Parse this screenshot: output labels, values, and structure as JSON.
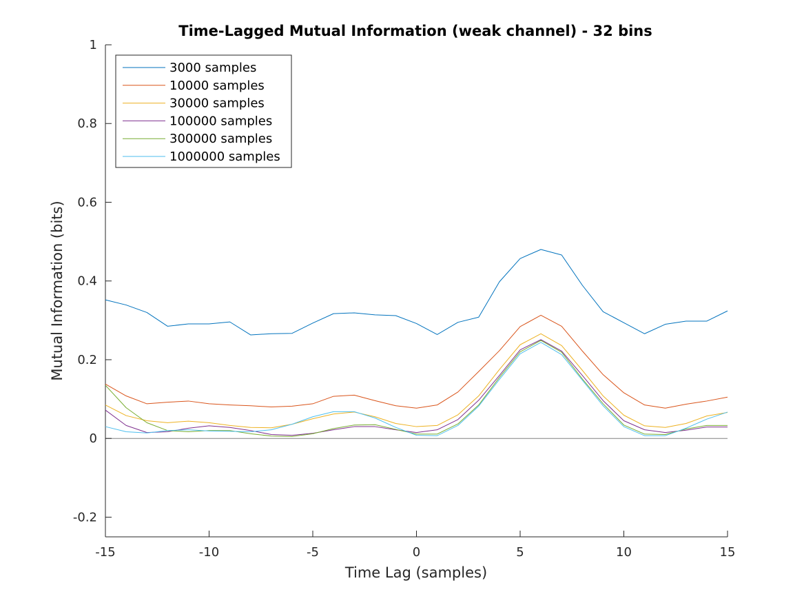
{
  "chart_data": {
    "type": "line",
    "title": "Time-Lagged Mutual Information (weak channel) - 32 bins",
    "xlabel": "Time Lag (samples)",
    "ylabel": "Mutual Information (bits)",
    "xlim": [
      -15,
      15
    ],
    "ylim": [
      -0.25,
      1
    ],
    "xticks": [
      -15,
      -10,
      -5,
      0,
      5,
      10,
      15
    ],
    "xtick_labels": [
      "-15",
      "-10",
      "-5",
      "0",
      "5",
      "10",
      "15"
    ],
    "yticks": [
      -0.2,
      0,
      0.2,
      0.4,
      0.6,
      0.8,
      1
    ],
    "ytick_labels": [
      "-0.2",
      "0",
      "0.2",
      "0.4",
      "0.6",
      "0.8",
      "1"
    ],
    "grid": false,
    "legend_position": "top-left",
    "reference_line_y": 0,
    "x": [
      -15,
      -14,
      -13,
      -12,
      -11,
      -10,
      -9,
      -8,
      -7,
      -6,
      -5,
      -4,
      -3,
      -2,
      -1,
      0,
      1,
      2,
      3,
      4,
      5,
      6,
      7,
      8,
      9,
      10,
      11,
      12,
      13,
      14,
      15
    ],
    "series": [
      {
        "name": "3000 samples",
        "color": "#0072BD",
        "values": [
          0.352,
          0.339,
          0.32,
          0.285,
          0.291,
          0.291,
          0.296,
          0.263,
          0.266,
          0.267,
          0.293,
          0.317,
          0.319,
          0.314,
          0.312,
          0.292,
          0.264,
          0.295,
          0.308,
          0.398,
          0.457,
          0.48,
          0.466,
          0.389,
          0.322,
          0.294,
          0.266,
          0.29,
          0.298,
          0.298,
          0.324
        ]
      },
      {
        "name": "10000 samples",
        "color": "#D95319",
        "values": [
          0.138,
          0.108,
          0.088,
          0.092,
          0.095,
          0.088,
          0.085,
          0.083,
          0.08,
          0.082,
          0.088,
          0.107,
          0.11,
          0.096,
          0.083,
          0.077,
          0.085,
          0.118,
          0.17,
          0.223,
          0.284,
          0.313,
          0.285,
          0.222,
          0.162,
          0.116,
          0.085,
          0.077,
          0.087,
          0.095,
          0.105
        ]
      },
      {
        "name": "30000 samples",
        "color": "#EDB120",
        "values": [
          0.085,
          0.058,
          0.045,
          0.04,
          0.044,
          0.04,
          0.033,
          0.028,
          0.027,
          0.036,
          0.05,
          0.062,
          0.067,
          0.055,
          0.038,
          0.03,
          0.033,
          0.06,
          0.108,
          0.175,
          0.238,
          0.266,
          0.236,
          0.173,
          0.108,
          0.059,
          0.032,
          0.028,
          0.038,
          0.057,
          0.066
        ]
      },
      {
        "name": "100000 samples",
        "color": "#7E2F8E",
        "values": [
          0.072,
          0.033,
          0.015,
          0.017,
          0.026,
          0.032,
          0.028,
          0.02,
          0.01,
          0.008,
          0.013,
          0.022,
          0.03,
          0.03,
          0.022,
          0.015,
          0.022,
          0.048,
          0.097,
          0.16,
          0.225,
          0.251,
          0.222,
          0.16,
          0.096,
          0.045,
          0.022,
          0.015,
          0.021,
          0.029,
          0.029
        ]
      },
      {
        "name": "300000 samples",
        "color": "#77AC30",
        "values": [
          0.135,
          0.078,
          0.04,
          0.02,
          0.017,
          0.02,
          0.02,
          0.012,
          0.006,
          0.005,
          0.012,
          0.025,
          0.034,
          0.035,
          0.023,
          0.011,
          0.011,
          0.037,
          0.085,
          0.155,
          0.22,
          0.249,
          0.219,
          0.151,
          0.088,
          0.034,
          0.011,
          0.01,
          0.024,
          0.033,
          0.033
        ]
      },
      {
        "name": "1000000 samples",
        "color": "#4DBEEE",
        "values": [
          0.03,
          0.017,
          0.014,
          0.02,
          0.022,
          0.019,
          0.018,
          0.017,
          0.022,
          0.036,
          0.055,
          0.068,
          0.068,
          0.052,
          0.028,
          0.008,
          0.007,
          0.033,
          0.082,
          0.15,
          0.215,
          0.244,
          0.213,
          0.148,
          0.083,
          0.03,
          0.007,
          0.007,
          0.026,
          0.049,
          0.067
        ]
      }
    ]
  }
}
